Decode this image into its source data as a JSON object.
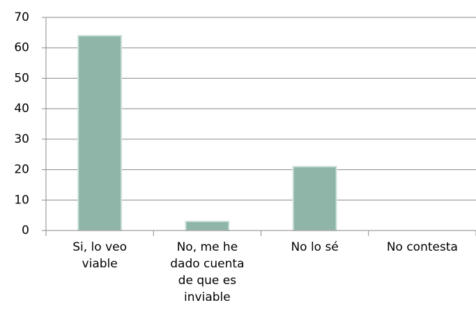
{
  "chart_data": {
    "type": "bar",
    "categories": [
      "Si, lo veo viable",
      "No, me he dado cuenta de que es inviable",
      "No lo sé",
      "No contesta"
    ],
    "values": [
      64,
      3,
      21,
      0
    ],
    "color": "#8fb5a8",
    "ylim": [
      0,
      70
    ],
    "yticks": [
      0,
      10,
      20,
      30,
      40,
      50,
      60,
      70
    ],
    "grid": true
  }
}
